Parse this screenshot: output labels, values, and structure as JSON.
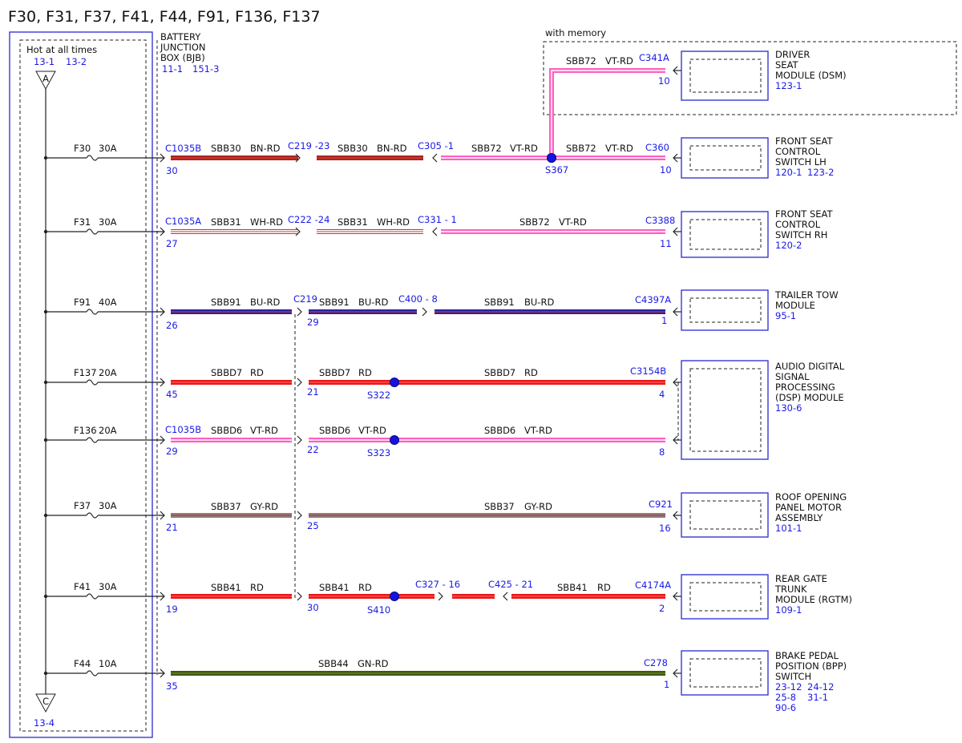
{
  "title": "F30, F31, F37, F41, F44, F91, F136, F137",
  "power": {
    "label": "Hot at all times",
    "refs": [
      "13-1",
      "13-2"
    ],
    "top_node": "A",
    "bottom_node": "C",
    "bottom_ref": "13-4"
  },
  "bjb": {
    "lines": [
      "BATTERY",
      "JUNCTION",
      "BOX (BJB)"
    ],
    "refs": [
      "11-1",
      "151-3"
    ]
  },
  "memory_label": "with memory",
  "rows": [
    {
      "fuse": "F30",
      "rating": "30A",
      "labels": [
        "C1035B",
        "30",
        "SBB30",
        "BN-RD",
        "C219 -23",
        "SBB30",
        "BN-RD",
        "C305 -1",
        "SBB72",
        "VT-RD",
        "S367",
        "SBB72",
        "VT-RD",
        "C360",
        "10"
      ],
      "branch_labels": [
        "SBB72",
        "VT-RD",
        "C341A",
        "10"
      ]
    },
    {
      "fuse": "F31",
      "rating": "30A",
      "labels": [
        "C1035A",
        "27",
        "SBB31",
        "WH-RD",
        "C222 -24",
        "SBB31",
        "WH-RD",
        "C331 - 1",
        "SBB72",
        "VT-RD",
        "C3388",
        "11"
      ]
    },
    {
      "fuse": "F91",
      "rating": "40A",
      "labels": [
        "26",
        "SBB91",
        "BU-RD",
        "C219",
        "29",
        "SBB91",
        "BU-RD",
        "C400 - 8",
        "SBB91",
        "BU-RD",
        "C4397A",
        "1"
      ]
    },
    {
      "fuse": "F137",
      "rating": "20A",
      "labels": [
        "45",
        "SBBD7",
        "RD",
        "21",
        "SBBD7",
        "RD",
        "S322",
        "SBBD7",
        "RD",
        "C3154B",
        "4"
      ]
    },
    {
      "fuse": "F136",
      "rating": "20A",
      "labels": [
        "C1035B",
        "29",
        "SBBD6",
        "VT-RD",
        "22",
        "SBBD6",
        "VT-RD",
        "S323",
        "SBBD6",
        "VT-RD",
        "8"
      ]
    },
    {
      "fuse": "F37",
      "rating": "30A",
      "labels": [
        "21",
        "SBB37",
        "GY-RD",
        "25",
        "SBB37",
        "GY-RD",
        "C921",
        "16"
      ]
    },
    {
      "fuse": "F41",
      "rating": "30A",
      "labels": [
        "19",
        "SBB41",
        "RD",
        "30",
        "SBB41",
        "RD",
        "S410",
        "C327 - 16",
        "C425 - 21",
        "SBB41",
        "RD",
        "C4174A",
        "2"
      ]
    },
    {
      "fuse": "F44",
      "rating": "10A",
      "labels": [
        "35",
        "SBB44",
        "GN-RD",
        "C278",
        "1"
      ]
    }
  ],
  "components": [
    {
      "lines": [
        "DRIVER",
        "SEAT",
        "MODULE (DSM)"
      ],
      "refs": [
        "123-1"
      ]
    },
    {
      "lines": [
        "FRONT SEAT",
        "CONTROL",
        "SWITCH LH"
      ],
      "refs": [
        "120-1",
        "123-2"
      ]
    },
    {
      "lines": [
        "FRONT SEAT",
        "CONTROL",
        "SWITCH RH"
      ],
      "refs": [
        "120-2"
      ]
    },
    {
      "lines": [
        "TRAILER TOW",
        "MODULE"
      ],
      "refs": [
        "95-1"
      ]
    },
    {
      "lines": [
        "AUDIO DIGITAL",
        "SIGNAL",
        "PROCESSING",
        "(DSP) MODULE"
      ],
      "refs": [
        "130-6"
      ]
    },
    {
      "lines": [
        "ROOF OPENING",
        "PANEL MOTOR",
        "ASSEMBLY"
      ],
      "refs": [
        "101-1"
      ]
    },
    {
      "lines": [
        "REAR GATE",
        "TRUNK",
        "MODULE (RGTM)"
      ],
      "refs": [
        "109-1"
      ]
    },
    {
      "lines": [
        "BRAKE PEDAL",
        "POSITION (BPP)",
        "SWITCH"
      ],
      "refs": [
        "23-12",
        "24-12",
        "25-8",
        "31-1",
        "90-6"
      ]
    }
  ]
}
